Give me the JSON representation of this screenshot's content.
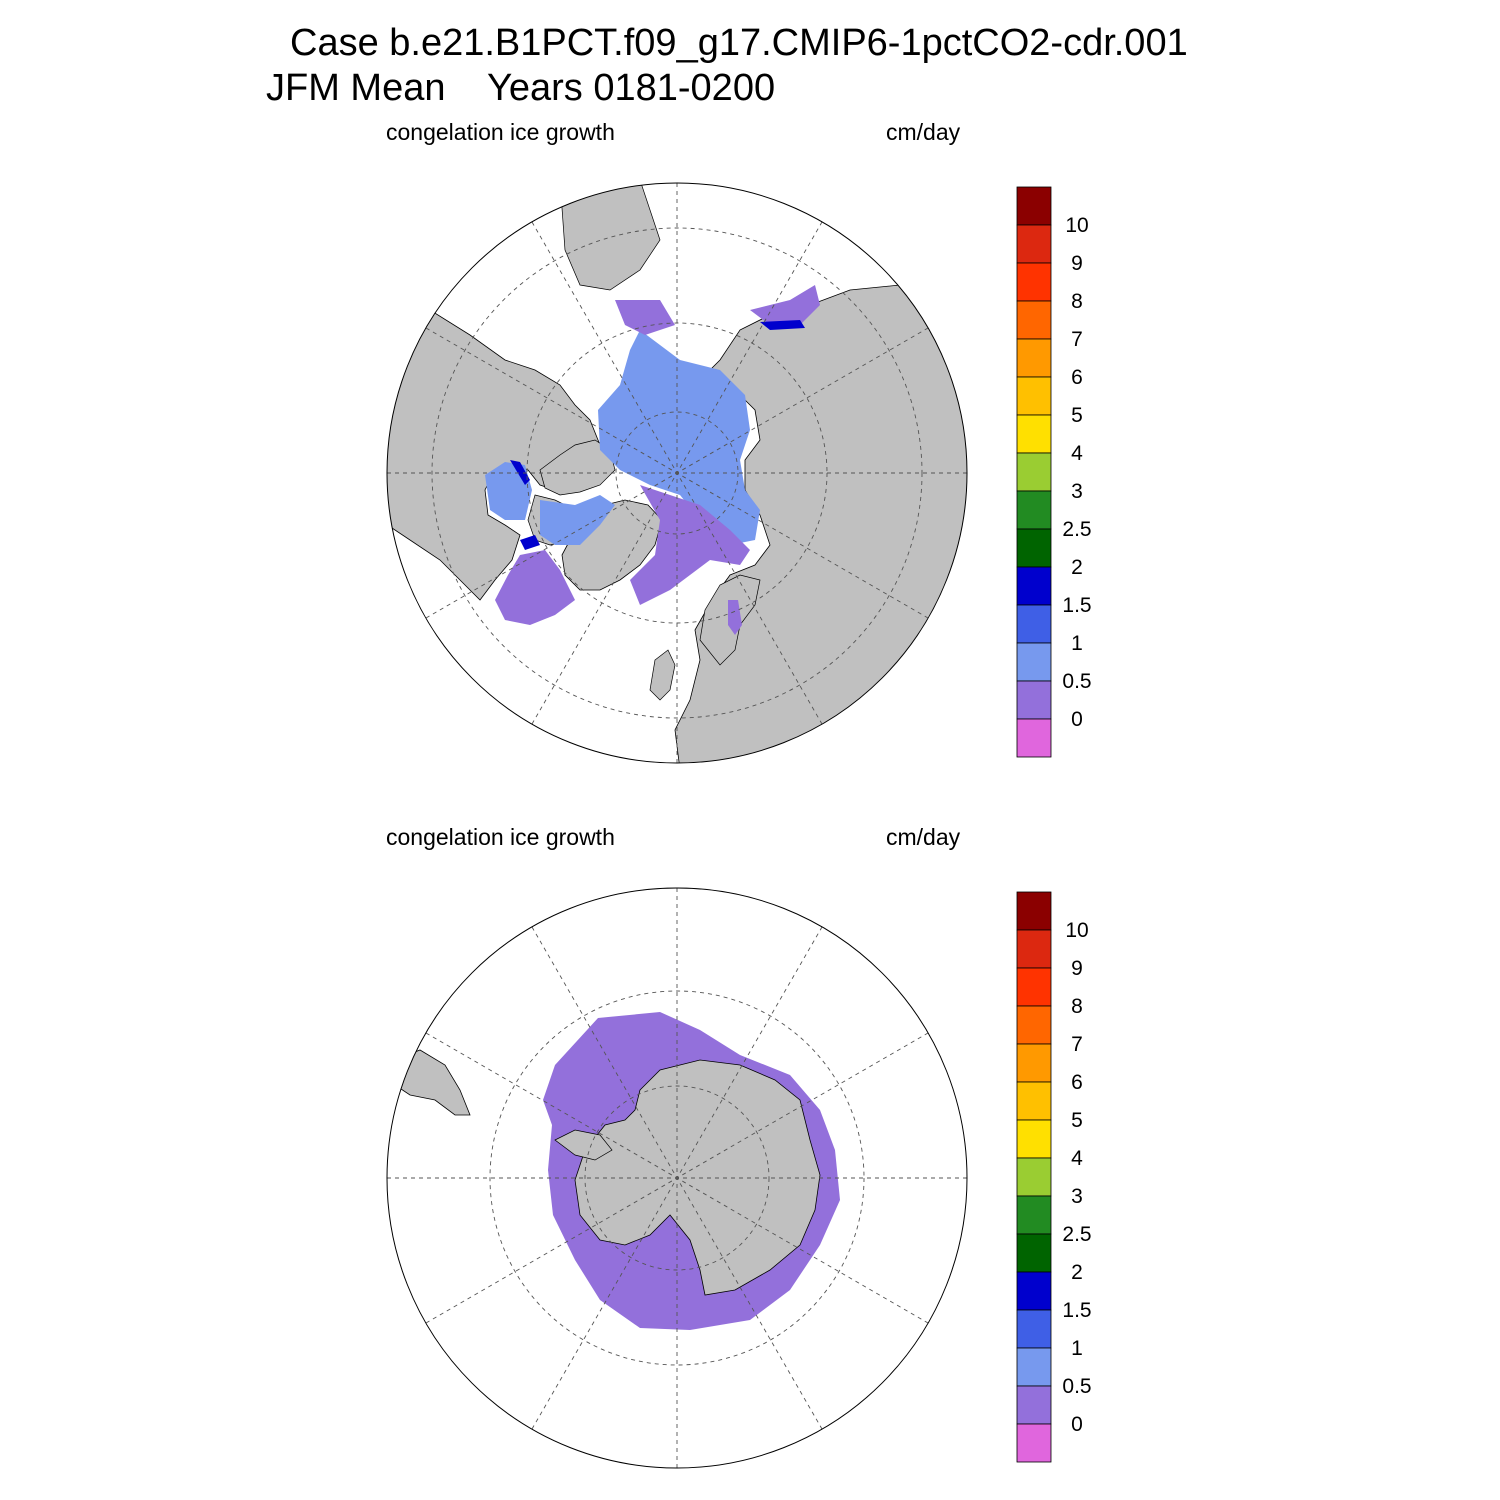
{
  "title": {
    "line1": "Case b.e21.B1PCT.f09_g17.CMIP6-1pctCO2-cdr.001",
    "line2": "JFM Mean    Years 0181-0200"
  },
  "colors": {
    "land": "#c0c0c0",
    "ice_growth_0_05": "#9370db",
    "ice_growth_05_1": "#7799ee",
    "ice_growth_1_15": "#3f5fe6",
    "ice_growth_15_2": "#0000cd"
  },
  "colorbar": {
    "labels": [
      "10",
      "9",
      "8",
      "7",
      "6",
      "5",
      "4",
      "3",
      "2.5",
      "2",
      "1.5",
      "1",
      "0.5",
      "0"
    ],
    "colors": [
      "#8b0000",
      "#dc2810",
      "#ff3300",
      "#ff6600",
      "#ff9900",
      "#ffc000",
      "#ffe000",
      "#9acd32",
      "#228b22",
      "#006400",
      "#0000cd",
      "#3f5fe6",
      "#7799ee",
      "#9370db",
      "#e066dd"
    ]
  },
  "panels": [
    {
      "id": "north",
      "left_label": "congelation ice growth",
      "right_label": "cm/day"
    },
    {
      "id": "south",
      "left_label": "congelation ice growth",
      "right_label": "cm/day"
    }
  ]
}
